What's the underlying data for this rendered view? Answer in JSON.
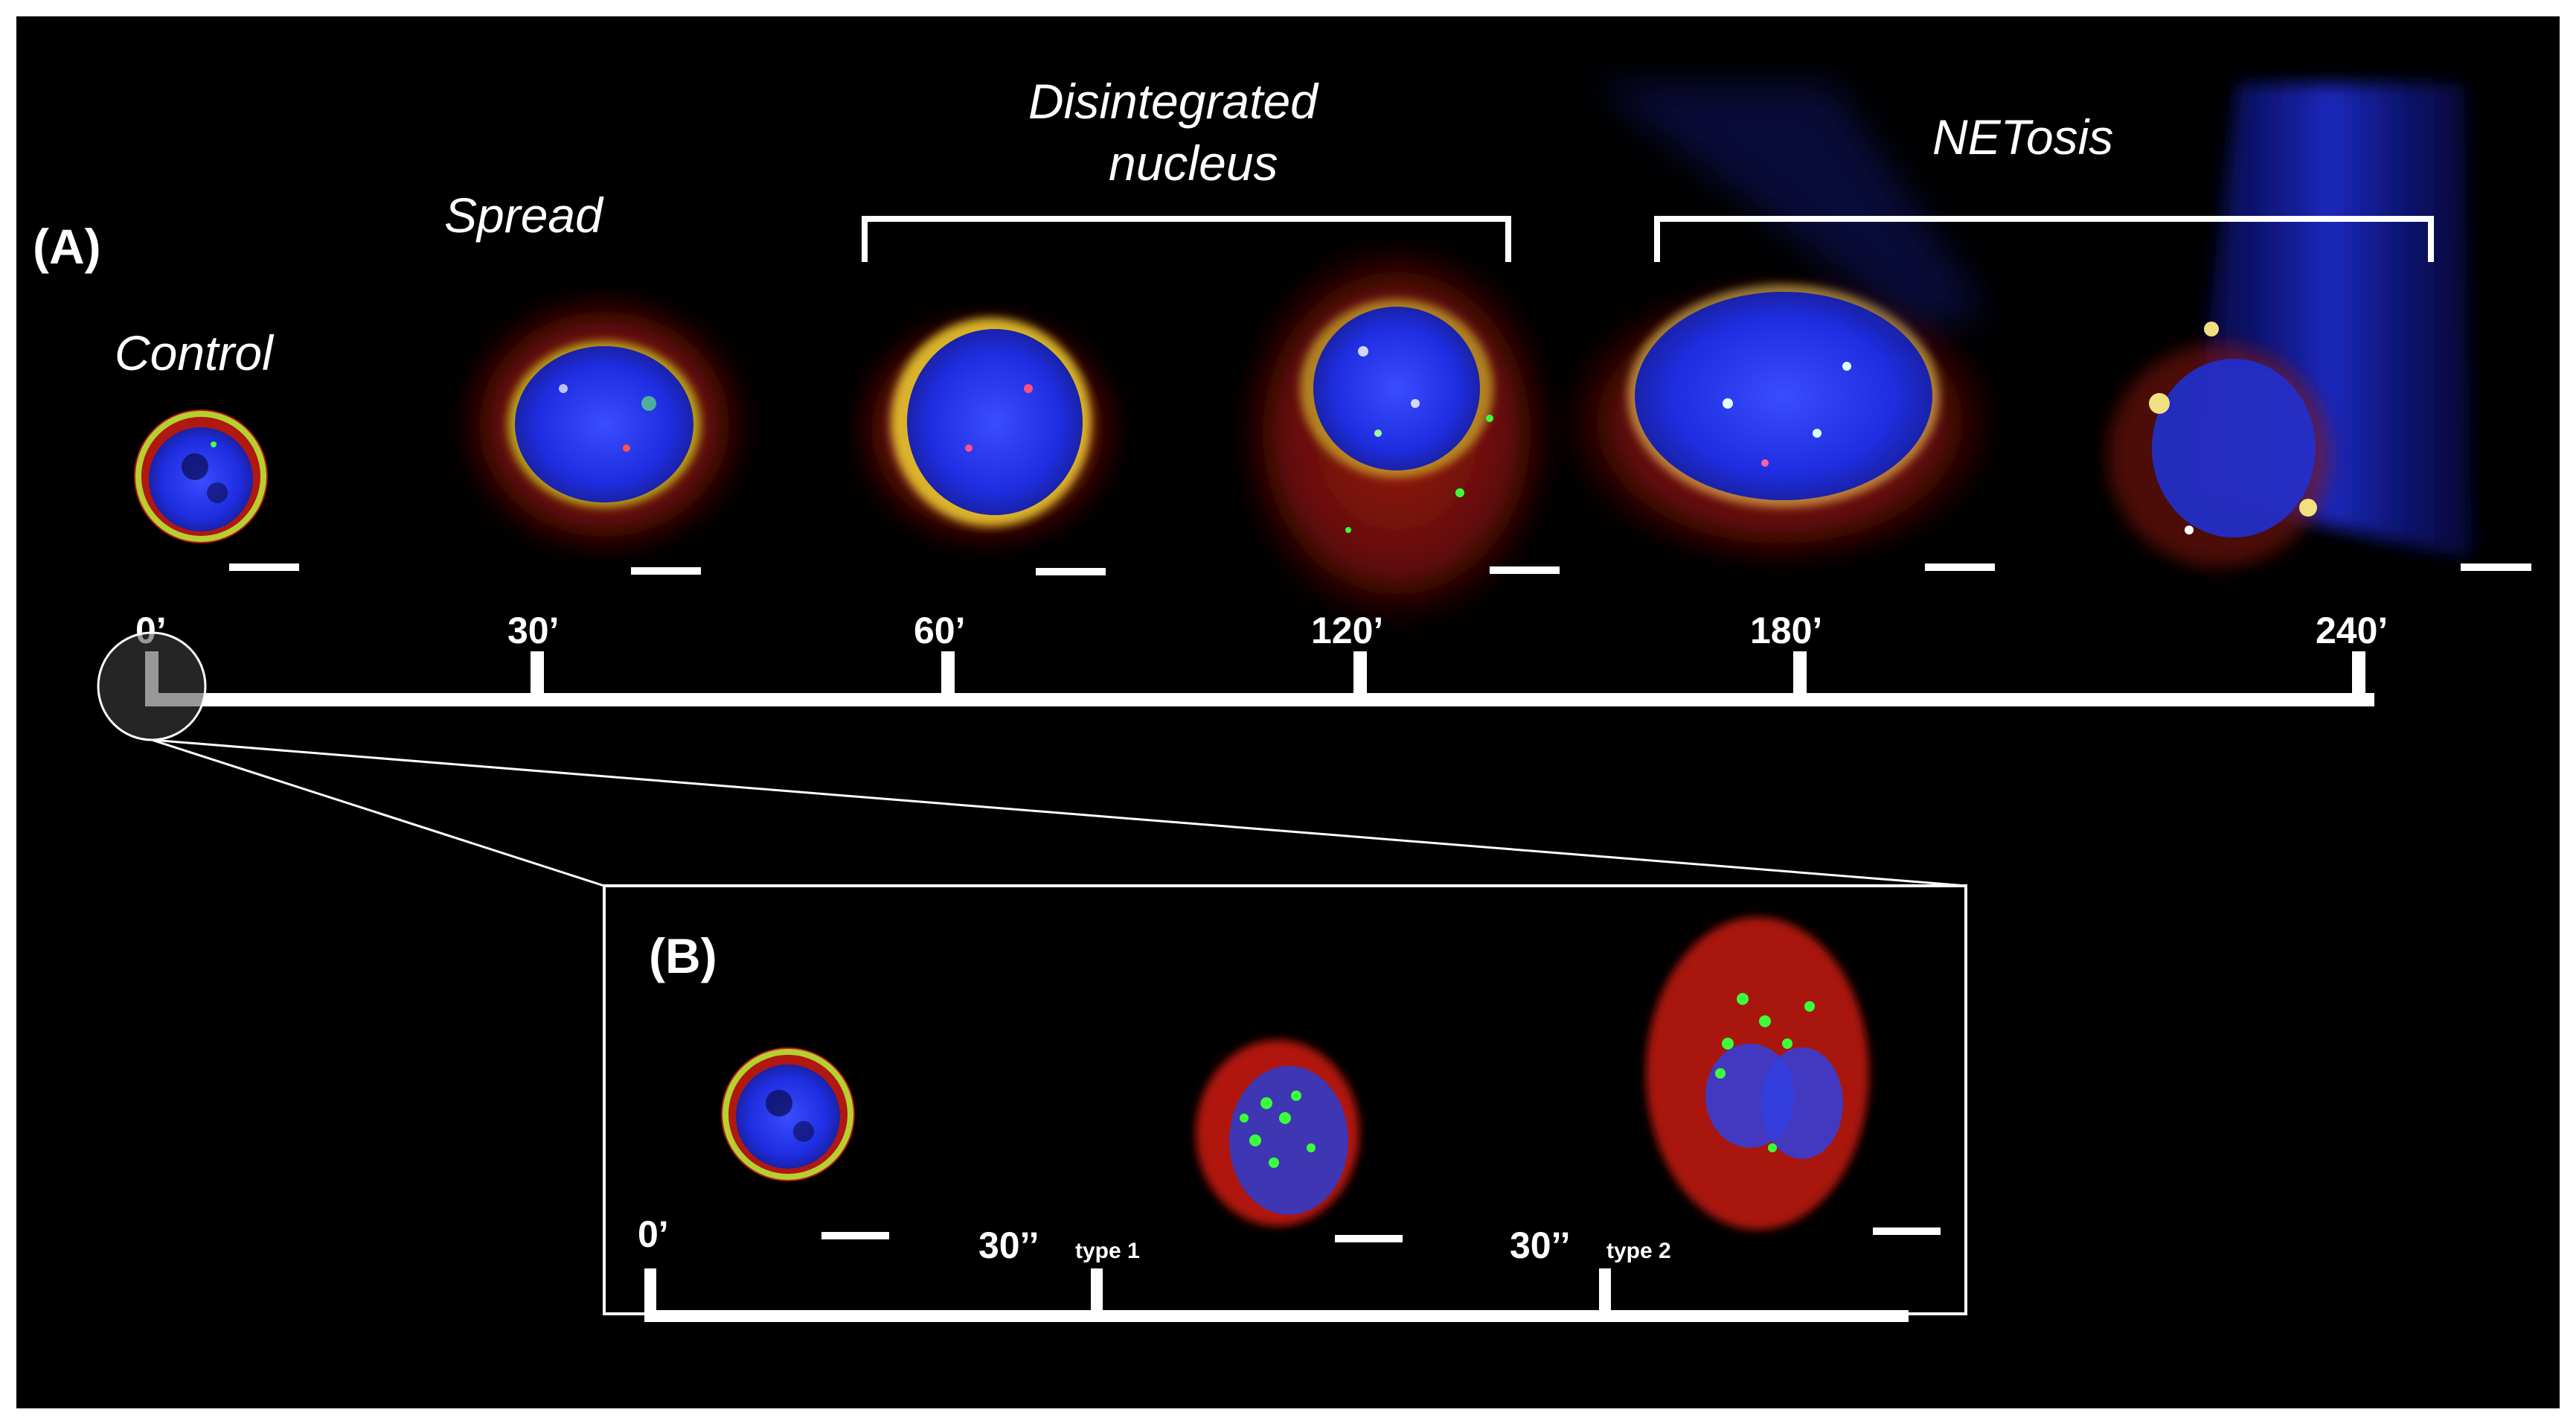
{
  "panel_a": {
    "label": "(A)",
    "stages": {
      "control": "Control",
      "spread": "Spread",
      "disintegrated_line1": "Disintegrated",
      "disintegrated_line2": "nucleus",
      "netosis": "NETosis"
    },
    "timepoints": [
      "0’",
      "30’",
      "60’",
      "120’",
      "180’",
      "240’"
    ]
  },
  "panel_b": {
    "label": "(B)",
    "timepoints": [
      {
        "value": "0’",
        "sub": ""
      },
      {
        "value": "30’’",
        "sub": "type 1"
      },
      {
        "value": "30’’",
        "sub": "type 2"
      }
    ]
  },
  "colors": {
    "background": "#000000",
    "annotation": "#ffffff",
    "nucleus_stain": "#2a3cff",
    "membrane_stain": "#e0261c",
    "granule_stain": "#3cff3c"
  }
}
